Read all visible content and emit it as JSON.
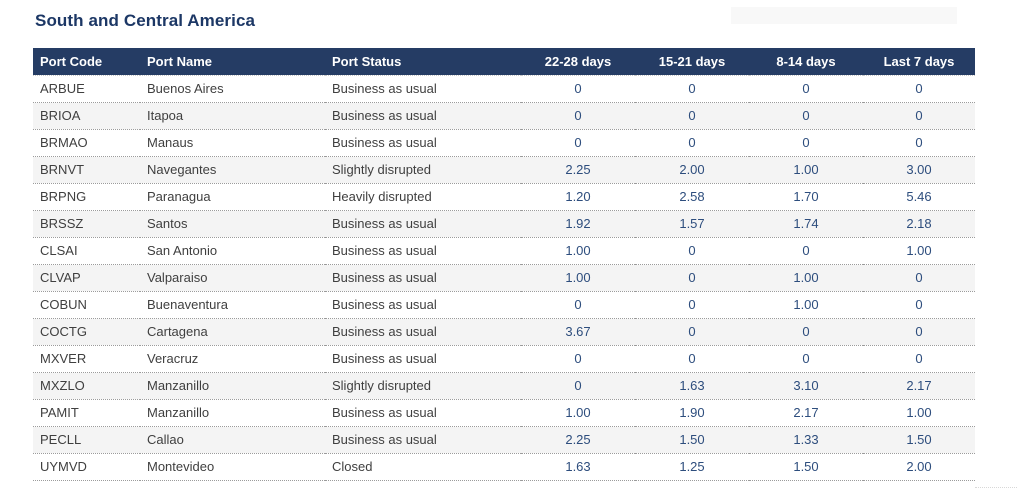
{
  "chart_data": {
    "type": "table",
    "title": "South and Central America",
    "columns": [
      "Port Code",
      "Port Name",
      "Port Status",
      "22-28 days",
      "15-21 days",
      "8-14 days",
      "Last 7 days"
    ],
    "rows": [
      [
        "ARBUE",
        "Buenos Aires",
        "Business as usual",
        "0",
        "0",
        "0",
        "0"
      ],
      [
        "BRIOA",
        "Itapoa",
        "Business as usual",
        "0",
        "0",
        "0",
        "0"
      ],
      [
        "BRMAO",
        "Manaus",
        "Business as usual",
        "0",
        "0",
        "0",
        "0"
      ],
      [
        "BRNVT",
        "Navegantes",
        "Slightly disrupted",
        "2.25",
        "2.00",
        "1.00",
        "3.00"
      ],
      [
        "BRPNG",
        "Paranagua",
        "Heavily disrupted",
        "1.20",
        "2.58",
        "1.70",
        "5.46"
      ],
      [
        "BRSSZ",
        "Santos",
        "Business as usual",
        "1.92",
        "1.57",
        "1.74",
        "2.18"
      ],
      [
        "CLSAI",
        "San Antonio",
        "Business as usual",
        "1.00",
        "0",
        "0",
        "1.00"
      ],
      [
        "CLVAP",
        "Valparaiso",
        "Business as usual",
        "1.00",
        "0",
        "1.00",
        "0"
      ],
      [
        "COBUN",
        "Buenaventura",
        "Business as usual",
        "0",
        "0",
        "1.00",
        "0"
      ],
      [
        "COCTG",
        "Cartagena",
        "Business as usual",
        "3.67",
        "0",
        "0",
        "0"
      ],
      [
        "MXVER",
        "Veracruz",
        "Business as usual",
        "0",
        "0",
        "0",
        "0"
      ],
      [
        "MXZLO",
        "Manzanillo",
        "Slightly disrupted",
        "0",
        "1.63",
        "3.10",
        "2.17"
      ],
      [
        "PAMIT",
        "Manzanillo",
        "Business as usual",
        "1.00",
        "1.90",
        "2.17",
        "1.00"
      ],
      [
        "PECLL",
        "Callao",
        "Business as usual",
        "2.25",
        "1.50",
        "1.33",
        "1.50"
      ],
      [
        "UYMVD",
        "Montevideo",
        "Closed",
        "1.63",
        "1.25",
        "1.50",
        "2.00"
      ]
    ],
    "status_values_present": [
      "Business as usual",
      "Slightly disrupted",
      "Heavily disrupted",
      "Closed"
    ]
  },
  "colors": {
    "header_background": "#253c64",
    "header_text": "#ffffff",
    "title_text": "#1c3765",
    "body_text": "#3f3f3f",
    "number_text": "#2d4d7d",
    "row_stripe": "#f4f4f4",
    "row_border": "#9b9b9b",
    "faded_box": "#f8f8f8"
  }
}
